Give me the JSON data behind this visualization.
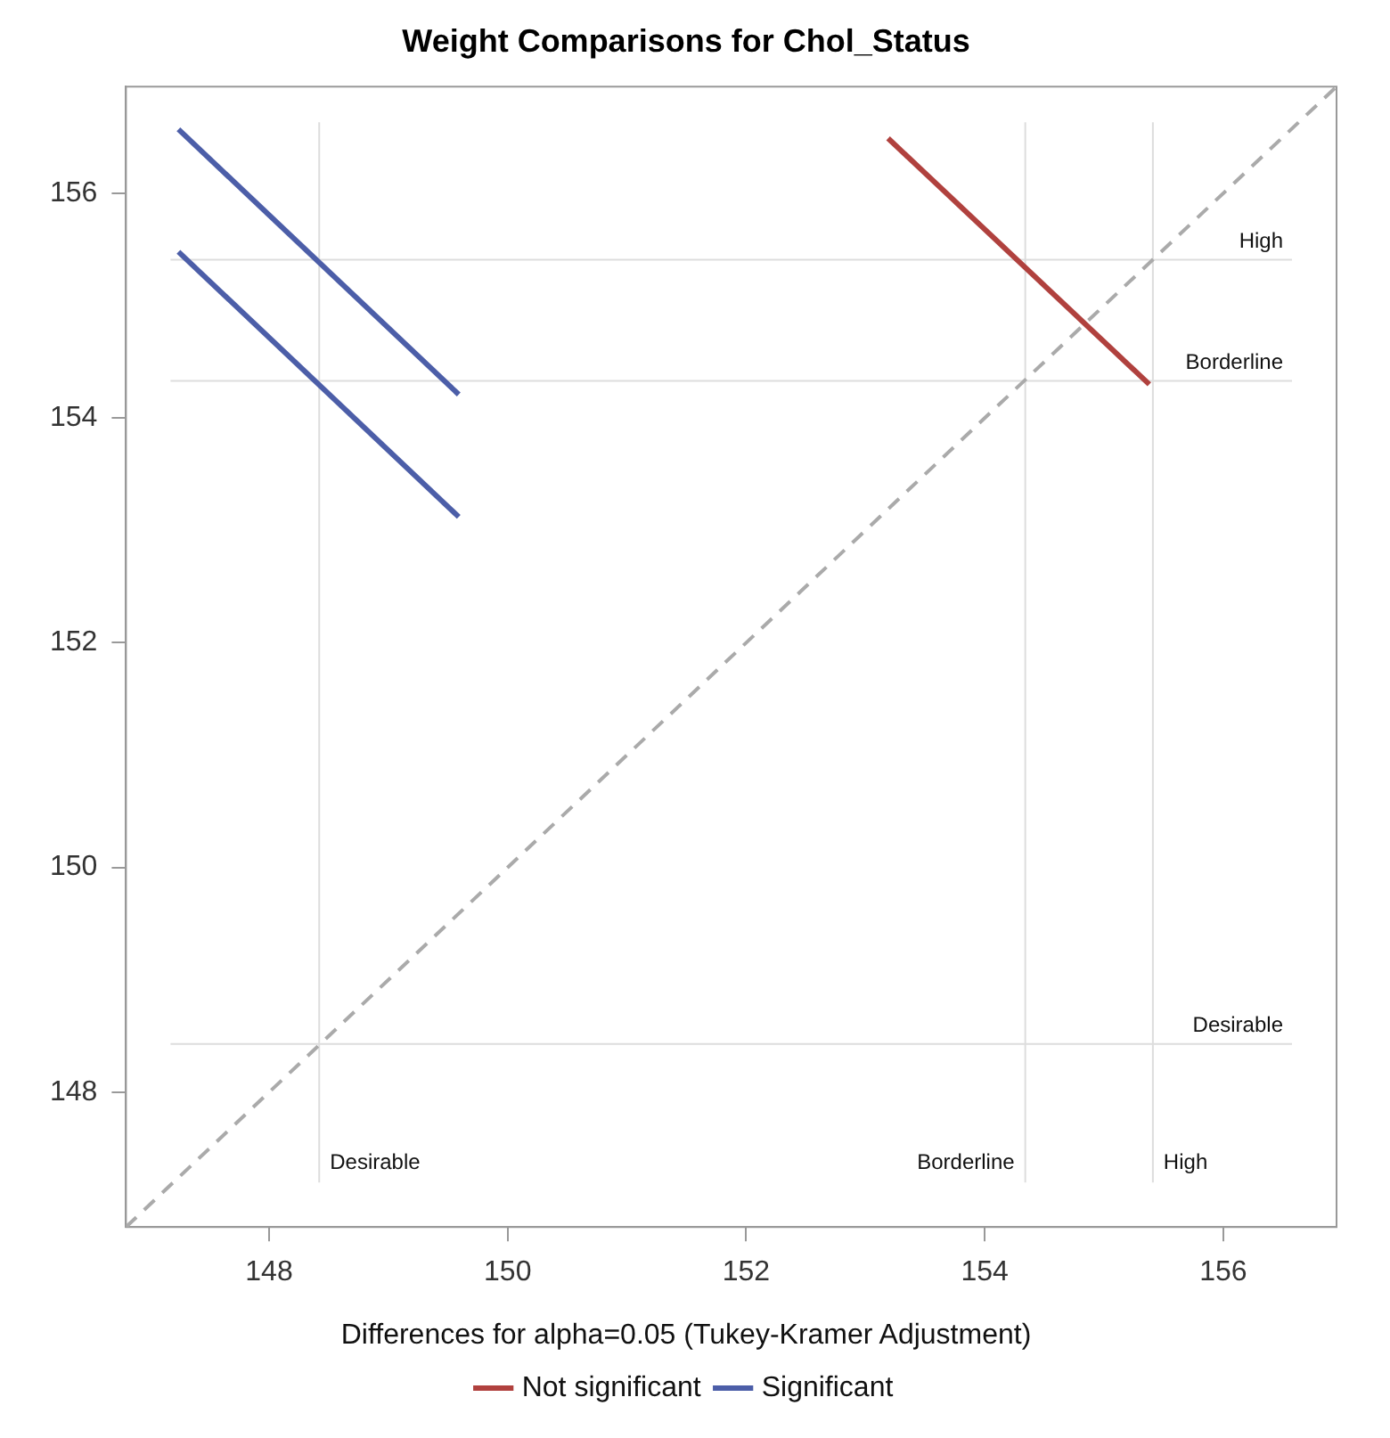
{
  "chart_data": {
    "type": "line",
    "title": "Weight Comparisons for Chol_Status",
    "legend_title": "Differences for alpha=0.05 (Tukey-Kramer Adjustment)",
    "legend": "bottom",
    "grid": false,
    "marker": "none",
    "xlim": [
      146.8,
      156.95
    ],
    "ylim": [
      146.8,
      156.95
    ],
    "xticks": [
      148,
      150,
      152,
      154,
      156
    ],
    "yticks": [
      148,
      150,
      152,
      154,
      156
    ],
    "series": [
      {
        "name": "Not significant",
        "color": "#b0413e",
        "x": [
          153.19,
          155.38
        ],
        "values": [
          156.49,
          154.3
        ]
      },
      {
        "name": "Significant",
        "color": "#4c5ea8",
        "x": [
          147.24,
          149.59
        ],
        "values": [
          156.57,
          154.21
        ]
      },
      {
        "color": "#4c5ea8",
        "x": [
          147.24,
          149.59
        ],
        "values": [
          155.48,
          153.12
        ]
      },
      {
        "color": "#aaaaaa",
        "line_style": "dashed",
        "x": [
          146.8,
          156.95
        ],
        "values": [
          146.8,
          156.95
        ]
      }
    ],
    "ref_lines": [
      {
        "axis": "x",
        "value": 148.42,
        "label": "Desirable",
        "color": "#dddddd"
      },
      {
        "axis": "x",
        "value": 154.34,
        "label": "Borderline",
        "color": "#dddddd"
      },
      {
        "axis": "x",
        "value": 155.41,
        "label": "High",
        "color": "#dddddd"
      },
      {
        "axis": "y",
        "value": 148.43,
        "label": "Desirable",
        "color": "#dddddd"
      },
      {
        "axis": "y",
        "value": 154.33,
        "label": "Borderline",
        "color": "#dddddd"
      },
      {
        "axis": "y",
        "value": 155.41,
        "label": "High",
        "color": "#dddddd"
      }
    ]
  }
}
